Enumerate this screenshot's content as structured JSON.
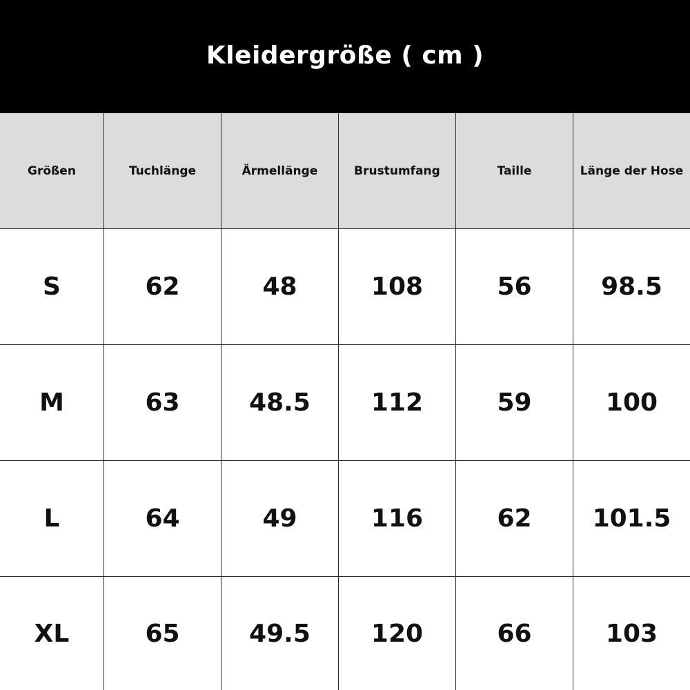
{
  "title": "Kleidergröße ( cm )",
  "table": {
    "headers": [
      "Größen",
      "Tuchlänge",
      "Ärmellänge",
      "Brustumfang",
      "Taille",
      "Länge der Hose"
    ],
    "rows": [
      [
        "S",
        "62",
        "48",
        "108",
        "56",
        "98.5"
      ],
      [
        "M",
        "63",
        "48.5",
        "112",
        "59",
        "100"
      ],
      [
        "L",
        "64",
        "49",
        "116",
        "62",
        "101.5"
      ],
      [
        "XL",
        "65",
        "49.5",
        "120",
        "66",
        "103"
      ]
    ]
  },
  "colors": {
    "title_background": "#000000",
    "title_text": "#ffffff",
    "header_background": "#dcdcdc",
    "grid_line": "#2a2a2a"
  }
}
